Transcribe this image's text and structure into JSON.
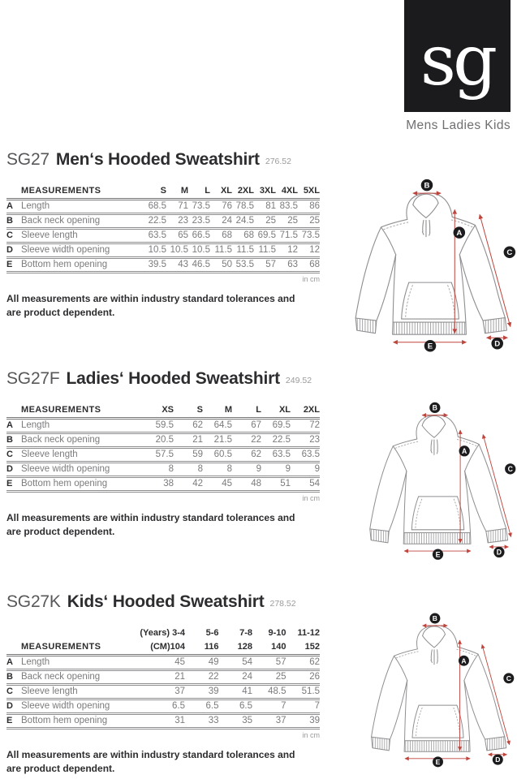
{
  "brand": {
    "logo_text": "sg",
    "tagline": "Mens Ladies Kids"
  },
  "diagram": {
    "labels": [
      "A",
      "B",
      "C",
      "D",
      "E"
    ]
  },
  "unit_note": "in cm",
  "footnote": [
    "All measurements are within industry standard tolerances and",
    "are product dependent."
  ],
  "sections": [
    {
      "code": "SG27",
      "title": "Men‘s Hooded Sweatshirt",
      "ref": "276.52",
      "table": {
        "label_header": "MEASUREMENTS",
        "size_headers": [
          "S",
          "M",
          "L",
          "XL",
          "2XL",
          "3XL",
          "4XL",
          "5XL"
        ],
        "rows": [
          {
            "letter": "A",
            "name": "Length",
            "values": [
              68.5,
              71,
              73.5,
              76,
              78.5,
              81,
              83.5,
              86
            ]
          },
          {
            "letter": "B",
            "name": "Back neck opening",
            "values": [
              22.5,
              23,
              23.5,
              24,
              24.5,
              25,
              25,
              25
            ]
          },
          {
            "letter": "C",
            "name": "Sleeve length",
            "values": [
              63.5,
              65,
              66.5,
              68,
              68,
              69.5,
              71.5,
              73.5
            ]
          },
          {
            "letter": "D",
            "name": "Sleeve width opening",
            "values": [
              10.5,
              10.5,
              10.5,
              11.5,
              11.5,
              11.5,
              12,
              12
            ]
          },
          {
            "letter": "E",
            "name": "Bottom hem opening",
            "values": [
              39.5,
              43,
              46.5,
              50,
              53.5,
              57,
              63,
              68
            ]
          }
        ]
      }
    },
    {
      "code": "SG27F",
      "title": "Ladies‘ Hooded Sweatshirt",
      "ref": "249.52",
      "table": {
        "label_header": "MEASUREMENTS",
        "size_headers": [
          "XS",
          "S",
          "M",
          "L",
          "XL",
          "2XL"
        ],
        "rows": [
          {
            "letter": "A",
            "name": "Length",
            "values": [
              59.5,
              62,
              64.5,
              67,
              69.5,
              72
            ]
          },
          {
            "letter": "B",
            "name": "Back neck opening",
            "values": [
              20.5,
              21,
              21.5,
              22,
              22.5,
              23
            ]
          },
          {
            "letter": "C",
            "name": "Sleeve length",
            "values": [
              57.5,
              59,
              60.5,
              62,
              63.5,
              63.5
            ]
          },
          {
            "letter": "D",
            "name": "Sleeve width opening",
            "values": [
              8,
              8,
              8,
              9,
              9,
              9
            ]
          },
          {
            "letter": "E",
            "name": "Bottom hem opening",
            "values": [
              38,
              42,
              45,
              48,
              51,
              54
            ]
          }
        ]
      }
    },
    {
      "code": "SG27K",
      "title": "Kids‘ Hooded Sweatshirt",
      "ref": "278.52",
      "table": {
        "label_header": "MEASUREMENTS",
        "age_headers": [
          "(Years) 3-4",
          "5-6",
          "7-8",
          "9-10",
          "11-12"
        ],
        "size_headers": [
          "(CM)104",
          "116",
          "128",
          "140",
          "152"
        ],
        "rows": [
          {
            "letter": "A",
            "name": "Length",
            "values": [
              45,
              49,
              54,
              57,
              62
            ]
          },
          {
            "letter": "B",
            "name": "Back neck opening",
            "values": [
              21,
              22,
              24,
              25,
              26
            ]
          },
          {
            "letter": "C",
            "name": "Sleeve length",
            "values": [
              37,
              39,
              41,
              48.5,
              51.5
            ]
          },
          {
            "letter": "D",
            "name": "Sleeve width opening",
            "values": [
              6.5,
              6.5,
              6.5,
              7,
              7
            ]
          },
          {
            "letter": "E",
            "name": "Bottom hem opening",
            "values": [
              31,
              33,
              35,
              37,
              39
            ]
          }
        ]
      }
    }
  ],
  "colors": {
    "accent_red": "#bf443c",
    "label_circle": "#1c1c1e",
    "logo_bg": "#1b1b1e"
  }
}
